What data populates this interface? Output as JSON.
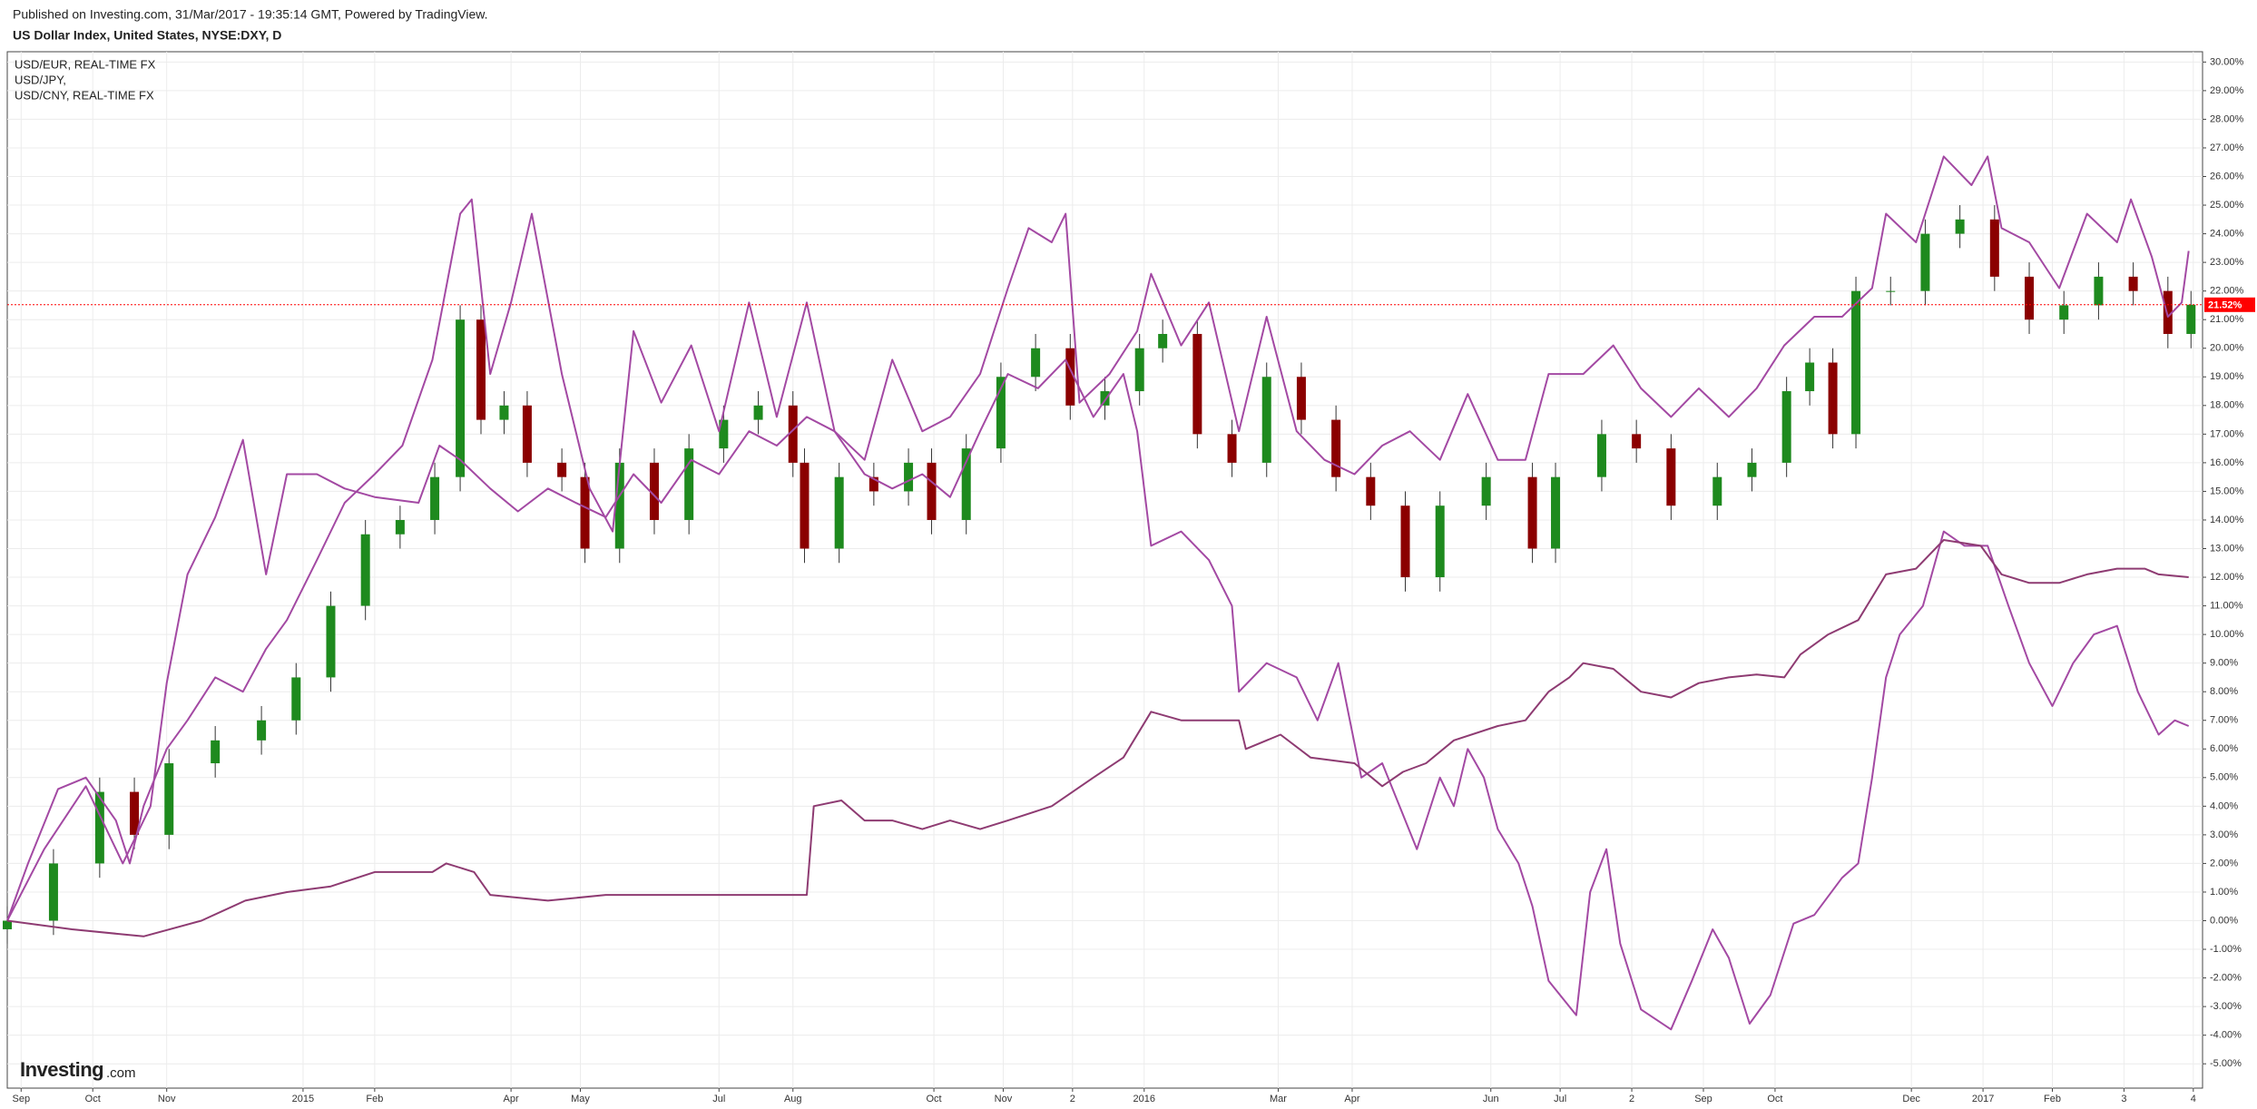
{
  "chart_data": {
    "type": "candlestick",
    "source": "Published on Investing.com, 31/Mar/2017 - 19:35:14 GMT, Powered by TradingView.",
    "title": "US Dollar Index, United States, NYSE:DXY, D",
    "logo": {
      "brand": "Investing",
      "suffix": ".com"
    },
    "xlim": [
      0,
      950
    ],
    "ylim": [
      -5.85,
      30.36
    ],
    "grid": true,
    "xticks": [
      {
        "value": 6,
        "label": "Sep"
      },
      {
        "value": 37,
        "label": "Oct"
      },
      {
        "value": 69,
        "label": "Nov"
      },
      {
        "value": 128,
        "label": "2015"
      },
      {
        "value": 159,
        "label": "Feb"
      },
      {
        "value": 218,
        "label": "Apr"
      },
      {
        "value": 248,
        "label": "May"
      },
      {
        "value": 308,
        "label": "Jul"
      },
      {
        "value": 340,
        "label": "Aug"
      },
      {
        "value": 401,
        "label": "Oct"
      },
      {
        "value": 431,
        "label": "Nov"
      },
      {
        "value": 461,
        "label": "2"
      },
      {
        "value": 492,
        "label": "2016"
      },
      {
        "value": 550,
        "label": "Mar"
      },
      {
        "value": 582,
        "label": "Apr"
      },
      {
        "value": 642,
        "label": "Jun"
      },
      {
        "value": 672,
        "label": "Jul"
      },
      {
        "value": 703,
        "label": "2"
      },
      {
        "value": 734,
        "label": "Sep"
      },
      {
        "value": 765,
        "label": "Oct"
      },
      {
        "value": 824,
        "label": "Dec"
      },
      {
        "value": 855,
        "label": "2017"
      },
      {
        "value": 885,
        "label": "Feb"
      },
      {
        "value": 916,
        "label": "3"
      },
      {
        "value": 946,
        "label": "4"
      }
    ],
    "yticks": [
      {
        "value": -5,
        "label": "-5.00%"
      },
      {
        "value": -4,
        "label": "-4.00%"
      },
      {
        "value": -3,
        "label": "-3.00%"
      },
      {
        "value": -2,
        "label": "-2.00%"
      },
      {
        "value": -1,
        "label": "-1.00%"
      },
      {
        "value": 0,
        "label": "0.00%"
      },
      {
        "value": 1,
        "label": "1.00%"
      },
      {
        "value": 2,
        "label": "2.00%"
      },
      {
        "value": 3,
        "label": "3.00%"
      },
      {
        "value": 4,
        "label": "4.00%"
      },
      {
        "value": 5,
        "label": "5.00%"
      },
      {
        "value": 6,
        "label": "6.00%"
      },
      {
        "value": 7,
        "label": "7.00%"
      },
      {
        "value": 8,
        "label": "8.00%"
      },
      {
        "value": 9,
        "label": "9.00%"
      },
      {
        "value": 10,
        "label": "10.00%"
      },
      {
        "value": 11,
        "label": "11.00%"
      },
      {
        "value": 12,
        "label": "12.00%"
      },
      {
        "value": 13,
        "label": "13.00%"
      },
      {
        "value": 14,
        "label": "14.00%"
      },
      {
        "value": 15,
        "label": "15.00%"
      },
      {
        "value": 16,
        "label": "16.00%"
      },
      {
        "value": 17,
        "label": "17.00%"
      },
      {
        "value": 18,
        "label": "18.00%"
      },
      {
        "value": 19,
        "label": "19.00%"
      },
      {
        "value": 20,
        "label": "20.00%"
      },
      {
        "value": 21,
        "label": "21.00%"
      },
      {
        "value": 22,
        "label": "22.00%"
      },
      {
        "value": 23,
        "label": "23.00%"
      },
      {
        "value": 24,
        "label": "24.00%"
      },
      {
        "value": 25,
        "label": "25.00%"
      },
      {
        "value": 26,
        "label": "26.00%"
      },
      {
        "value": 27,
        "label": "27.00%"
      },
      {
        "value": 28,
        "label": "28.00%"
      },
      {
        "value": 29,
        "label": "29.00%"
      },
      {
        "value": 30,
        "label": "30.00%"
      }
    ],
    "last_value": {
      "value": 21.52,
      "label": "21.52%",
      "color": "#ff0000"
    },
    "candles": {
      "up_color": "#1e8a1e",
      "down_color": "#8b0000",
      "x": [
        0,
        20,
        40,
        55,
        70,
        90,
        110,
        125,
        140,
        155,
        170,
        185,
        196,
        205,
        215,
        225,
        240,
        250,
        265,
        280,
        295,
        310,
        325,
        340,
        345,
        360,
        375,
        390,
        400,
        415,
        430,
        445,
        460,
        475,
        490,
        500,
        515,
        530,
        545,
        560,
        575,
        590,
        605,
        620,
        640,
        660,
        670,
        690,
        705,
        720,
        740,
        755,
        770,
        780,
        790,
        800,
        815,
        830,
        845,
        860,
        875,
        890,
        905,
        920,
        935,
        945
      ],
      "open": [
        -0.3,
        0,
        2,
        4.5,
        3,
        5.5,
        6.3,
        7,
        8.5,
        11,
        13.5,
        14,
        15.5,
        21,
        17.5,
        18,
        16,
        15.5,
        13,
        16,
        14,
        16.5,
        17.5,
        18,
        16,
        13,
        15.5,
        15,
        16,
        14,
        16.5,
        19,
        20,
        18,
        18.5,
        20,
        20.5,
        17,
        16,
        19,
        17.5,
        15.5,
        14.5,
        12,
        14.5,
        15.5,
        13,
        15.5,
        17,
        16.5,
        14.5,
        15.5,
        16,
        18.5,
        19.5,
        17,
        22,
        22,
        24,
        24.5,
        22.5,
        21,
        21.5,
        22.5,
        22,
        20.5
      ],
      "high": [
        0.5,
        2.5,
        5,
        5,
        6,
        6.8,
        7.5,
        9,
        11.5,
        14,
        14.5,
        16,
        21.5,
        21.5,
        18.5,
        18.5,
        16.5,
        16,
        16.5,
        16.5,
        17,
        18,
        18.5,
        18.5,
        16.5,
        16,
        16,
        16.5,
        16.5,
        17,
        19.5,
        20.5,
        20.5,
        19,
        20.5,
        21,
        21,
        17.5,
        19.5,
        19.5,
        18,
        16,
        15,
        15,
        16,
        16,
        16,
        17.5,
        17.5,
        17,
        16,
        16.5,
        19,
        20,
        20,
        22.5,
        22.5,
        24.5,
        25,
        25,
        23,
        22,
        23,
        23,
        22.5,
        22
      ],
      "low": [
        -0.8,
        -0.5,
        1.5,
        2.5,
        2.5,
        5,
        5.8,
        6.5,
        8,
        10.5,
        13,
        13.5,
        15,
        17,
        17,
        15.5,
        15,
        12.5,
        12.5,
        13.5,
        13.5,
        16,
        17,
        15.5,
        12.5,
        12.5,
        14.5,
        14.5,
        13.5,
        13.5,
        16,
        18.5,
        17.5,
        17.5,
        18,
        19.5,
        16.5,
        15.5,
        15.5,
        17,
        15,
        14,
        11.5,
        11.5,
        14,
        12.5,
        12.5,
        15,
        16,
        14,
        14,
        15,
        15.5,
        18,
        16.5,
        16.5,
        21.5,
        21.5,
        23.5,
        22,
        20.5,
        20.5,
        21,
        21.5,
        20,
        20
      ],
      "close": [
        0,
        2,
        4.5,
        3,
        5.5,
        6.3,
        7,
        8.5,
        11,
        13.5,
        14,
        15.5,
        21,
        17.5,
        18,
        16,
        15.5,
        13,
        16,
        14,
        16.5,
        17.5,
        18,
        16,
        13,
        15.5,
        15,
        16,
        14,
        16.5,
        19,
        20,
        18,
        18.5,
        20,
        20.5,
        17,
        16,
        19,
        17.5,
        15.5,
        14.5,
        12,
        14.5,
        15.5,
        13,
        15.5,
        17,
        16.5,
        14.5,
        15.5,
        16,
        18.5,
        19.5,
        17,
        22,
        22,
        24,
        24.5,
        22.5,
        21,
        21.5,
        22.5,
        22,
        20.5,
        21.52
      ]
    },
    "series": [
      {
        "name": "USD/EUR, REAL-TIME FX",
        "color": "#a349a3",
        "x": [
          0,
          9,
          22,
          34,
          47,
          53,
          59,
          69,
          78,
          90,
          102,
          112,
          121,
          134,
          146,
          159,
          171,
          184,
          196,
          201,
          209,
          218,
          227,
          240,
          252,
          262,
          271,
          283,
          296,
          308,
          321,
          333,
          346,
          358,
          371,
          383,
          396,
          408,
          421,
          433,
          442,
          452,
          458,
          464,
          477,
          489,
          495,
          508,
          520,
          533,
          545,
          558,
          570,
          583,
          595,
          607,
          620,
          632,
          645,
          657,
          667,
          682,
          695,
          707,
          720,
          732,
          745,
          757,
          769,
          782,
          794,
          807,
          813,
          826,
          838,
          850,
          857,
          863,
          875,
          888,
          900,
          913,
          919,
          928,
          935,
          941,
          944
        ],
        "values": [
          0,
          2.0,
          4.6,
          5.0,
          3.5,
          2.0,
          4.0,
          6.0,
          7.0,
          8.5,
          8.0,
          9.5,
          10.5,
          12.6,
          14.6,
          15.6,
          16.6,
          19.6,
          24.7,
          25.2,
          19.1,
          21.6,
          24.7,
          19.1,
          15.1,
          13.6,
          20.6,
          18.1,
          20.1,
          17.1,
          21.6,
          17.6,
          21.6,
          17.1,
          16.1,
          19.6,
          17.1,
          17.6,
          19.1,
          22.1,
          24.2,
          23.7,
          24.7,
          18.1,
          19.1,
          20.6,
          22.6,
          20.1,
          21.6,
          17.1,
          21.1,
          17.1,
          16.1,
          15.6,
          16.6,
          17.1,
          16.1,
          18.4,
          16.1,
          16.1,
          19.1,
          19.1,
          20.1,
          18.6,
          17.6,
          18.6,
          17.6,
          18.6,
          20.1,
          21.1,
          21.1,
          22.1,
          24.7,
          23.7,
          26.7,
          25.7,
          26.7,
          24.2,
          23.7,
          22.1,
          24.7,
          23.7,
          25.2,
          23.2,
          21.1,
          21.6,
          23.4
        ]
      },
      {
        "name": "USD/JPY,",
        "color": "#a349a3",
        "x": [
          0,
          16,
          34,
          50,
          62,
          69,
          78,
          90,
          102,
          112,
          121,
          134,
          146,
          159,
          178,
          187,
          196,
          209,
          221,
          234,
          246,
          259,
          271,
          283,
          296,
          308,
          321,
          333,
          346,
          358,
          371,
          383,
          396,
          408,
          421,
          433,
          446,
          458,
          470,
          483,
          489,
          495,
          508,
          520,
          530,
          533,
          545,
          558,
          567,
          576,
          586,
          595,
          610,
          620,
          626,
          632,
          639,
          645,
          654,
          660,
          667,
          679,
          685,
          692,
          698,
          707,
          720,
          729,
          738,
          745,
          754,
          763,
          773,
          782,
          794,
          801,
          807,
          813,
          819,
          829,
          838,
          847,
          857,
          866,
          875,
          885,
          894,
          903,
          913,
          922,
          931,
          938,
          944
        ],
        "values": [
          0,
          2.5,
          4.7,
          2.0,
          4.0,
          8.3,
          12.1,
          14.1,
          16.8,
          12.1,
          15.6,
          15.6,
          15.1,
          14.8,
          14.6,
          16.6,
          16.1,
          15.1,
          14.3,
          15.1,
          14.6,
          14.1,
          15.6,
          14.6,
          16.1,
          15.6,
          17.1,
          16.6,
          17.6,
          17.1,
          15.6,
          15.1,
          15.6,
          14.8,
          17.1,
          19.1,
          18.6,
          19.6,
          17.6,
          19.1,
          17.1,
          13.1,
          13.6,
          12.6,
          11.0,
          8.0,
          9.0,
          8.5,
          7.0,
          9.0,
          5.0,
          5.5,
          2.5,
          5.0,
          4.0,
          6.0,
          5.0,
          3.2,
          2.0,
          0.5,
          -2.1,
          -3.3,
          1.0,
          2.5,
          -0.8,
          -3.1,
          -3.8,
          -2.1,
          -0.3,
          -1.3,
          -3.6,
          -2.6,
          -0.1,
          0.2,
          1.5,
          2.0,
          5.0,
          8.5,
          10.0,
          11.0,
          13.6,
          13.1,
          13.1,
          11.0,
          9.0,
          7.5,
          9.0,
          10.0,
          10.3,
          8.0,
          6.5,
          7.0,
          6.8
        ]
      },
      {
        "name": "USD/CNY, REAL-TIME FX",
        "color": "#8e3b72",
        "x": [
          0,
          28,
          59,
          84,
          103,
          121,
          140,
          159,
          184,
          190,
          202,
          209,
          234,
          259,
          283,
          308,
          346,
          349,
          361,
          371,
          383,
          396,
          408,
          421,
          433,
          452,
          470,
          483,
          495,
          508,
          533,
          536,
          551,
          564,
          583,
          595,
          604,
          614,
          626,
          645,
          657,
          667,
          676,
          682,
          695,
          707,
          720,
          732,
          745,
          757,
          769,
          776,
          788,
          801,
          813,
          826,
          838,
          854,
          863,
          875,
          888,
          900,
          913,
          925,
          931,
          944
        ],
        "values": [
          0,
          -0.3,
          -0.55,
          0,
          0.7,
          1.0,
          1.2,
          1.7,
          1.7,
          2.0,
          1.7,
          0.9,
          0.7,
          0.9,
          0.9,
          0.9,
          0.9,
          4.0,
          4.2,
          3.5,
          3.5,
          3.2,
          3.5,
          3.2,
          3.5,
          4.0,
          5.0,
          5.7,
          7.3,
          7.0,
          7.0,
          6.0,
          6.5,
          5.7,
          5.5,
          4.7,
          5.2,
          5.5,
          6.3,
          6.8,
          7.0,
          8.0,
          8.5,
          9.0,
          8.8,
          8.0,
          7.8,
          8.3,
          8.5,
          8.6,
          8.5,
          9.3,
          10.0,
          10.5,
          12.1,
          12.3,
          13.3,
          13.1,
          12.1,
          11.8,
          11.8,
          12.1,
          12.3,
          12.3,
          12.1,
          12.0
        ]
      }
    ]
  }
}
